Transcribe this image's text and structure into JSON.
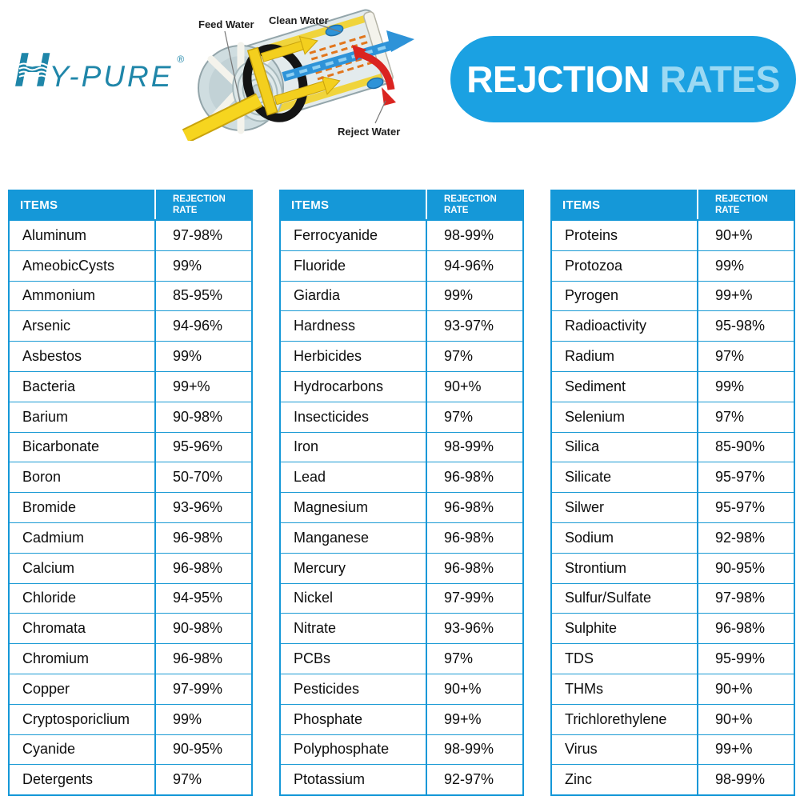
{
  "logo": {
    "h": "H",
    "rest": "Y-PURE",
    "registered": "®",
    "color": "#1f86a9"
  },
  "banner": {
    "word_primary": "REJCTION",
    "word_secondary": "RATES",
    "bg_color": "#1ba1e2",
    "secondary_text_color": "#9bd9f3"
  },
  "diagram": {
    "feed_label": "Feed Water",
    "clean_label": "Clean Water",
    "reject_label": "Reject Water"
  },
  "table_header": {
    "items": "ITEMS",
    "rate": "REJECTION\nRATE",
    "header_color": "#1598d8"
  },
  "tables": [
    {
      "rows": [
        {
          "item": "Aluminum",
          "rate": "97-98%"
        },
        {
          "item": "AmeobicCysts",
          "rate": "99%"
        },
        {
          "item": "Ammonium",
          "rate": "85-95%"
        },
        {
          "item": "Arsenic",
          "rate": "94-96%"
        },
        {
          "item": "Asbestos",
          "rate": "99%"
        },
        {
          "item": "Bacteria",
          "rate": "99+%"
        },
        {
          "item": "Barium",
          "rate": "90-98%"
        },
        {
          "item": "Bicarbonate",
          "rate": "95-96%"
        },
        {
          "item": "Boron",
          "rate": "50-70%"
        },
        {
          "item": "Bromide",
          "rate": "93-96%"
        },
        {
          "item": "Cadmium",
          "rate": "96-98%"
        },
        {
          "item": "Calcium",
          "rate": "96-98%"
        },
        {
          "item": "Chloride",
          "rate": "94-95%"
        },
        {
          "item": "Chromata",
          "rate": "90-98%"
        },
        {
          "item": "Chromium",
          "rate": "96-98%"
        },
        {
          "item": "Copper",
          "rate": "97-99%"
        },
        {
          "item": "Cryptosporiclium",
          "rate": "99%"
        },
        {
          "item": "Cyanide",
          "rate": "90-95%"
        },
        {
          "item": "Detergents",
          "rate": "97%"
        }
      ]
    },
    {
      "rows": [
        {
          "item": "Ferrocyanide",
          "rate": "98-99%"
        },
        {
          "item": "Fluoride",
          "rate": "94-96%"
        },
        {
          "item": "Giardia",
          "rate": "99%"
        },
        {
          "item": "Hardness",
          "rate": "93-97%"
        },
        {
          "item": "Herbicides",
          "rate": "97%"
        },
        {
          "item": "Hydrocarbons",
          "rate": "90+%"
        },
        {
          "item": "Insecticides",
          "rate": "97%"
        },
        {
          "item": "Iron",
          "rate": "98-99%"
        },
        {
          "item": "Lead",
          "rate": "96-98%"
        },
        {
          "item": "Magnesium",
          "rate": "96-98%"
        },
        {
          "item": "Manganese",
          "rate": "96-98%"
        },
        {
          "item": "Mercury",
          "rate": "96-98%"
        },
        {
          "item": "Nickel",
          "rate": "97-99%"
        },
        {
          "item": "Nitrate",
          "rate": "93-96%"
        },
        {
          "item": "PCBs",
          "rate": "97%"
        },
        {
          "item": "Pesticides",
          "rate": "90+%"
        },
        {
          "item": "Phosphate",
          "rate": "99+%"
        },
        {
          "item": "Polyphosphate",
          "rate": "98-99%"
        },
        {
          "item": "Ptotassium",
          "rate": "92-97%"
        }
      ]
    },
    {
      "rows": [
        {
          "item": "Proteins",
          "rate": "90+%"
        },
        {
          "item": "Protozoa",
          "rate": "99%"
        },
        {
          "item": "Pyrogen",
          "rate": "99+%"
        },
        {
          "item": "Radioactivity",
          "rate": "95-98%"
        },
        {
          "item": "Radium",
          "rate": "97%"
        },
        {
          "item": "Sediment",
          "rate": "99%"
        },
        {
          "item": "Selenium",
          "rate": "97%"
        },
        {
          "item": "Silica",
          "rate": "85-90%"
        },
        {
          "item": "Silicate",
          "rate": "95-97%"
        },
        {
          "item": "Silwer",
          "rate": "95-97%"
        },
        {
          "item": "Sodium",
          "rate": "92-98%"
        },
        {
          "item": "Strontium",
          "rate": "90-95%"
        },
        {
          "item": "Sulfur/Sulfate",
          "rate": "97-98%"
        },
        {
          "item": "Sulphite",
          "rate": "96-98%"
        },
        {
          "item": "TDS",
          "rate": "95-99%"
        },
        {
          "item": "THMs",
          "rate": "90+%"
        },
        {
          "item": "Trichlorethylene",
          "rate": "90+%"
        },
        {
          "item": "Virus",
          "rate": "99+%"
        },
        {
          "item": "Zinc",
          "rate": "98-99%"
        }
      ]
    }
  ]
}
